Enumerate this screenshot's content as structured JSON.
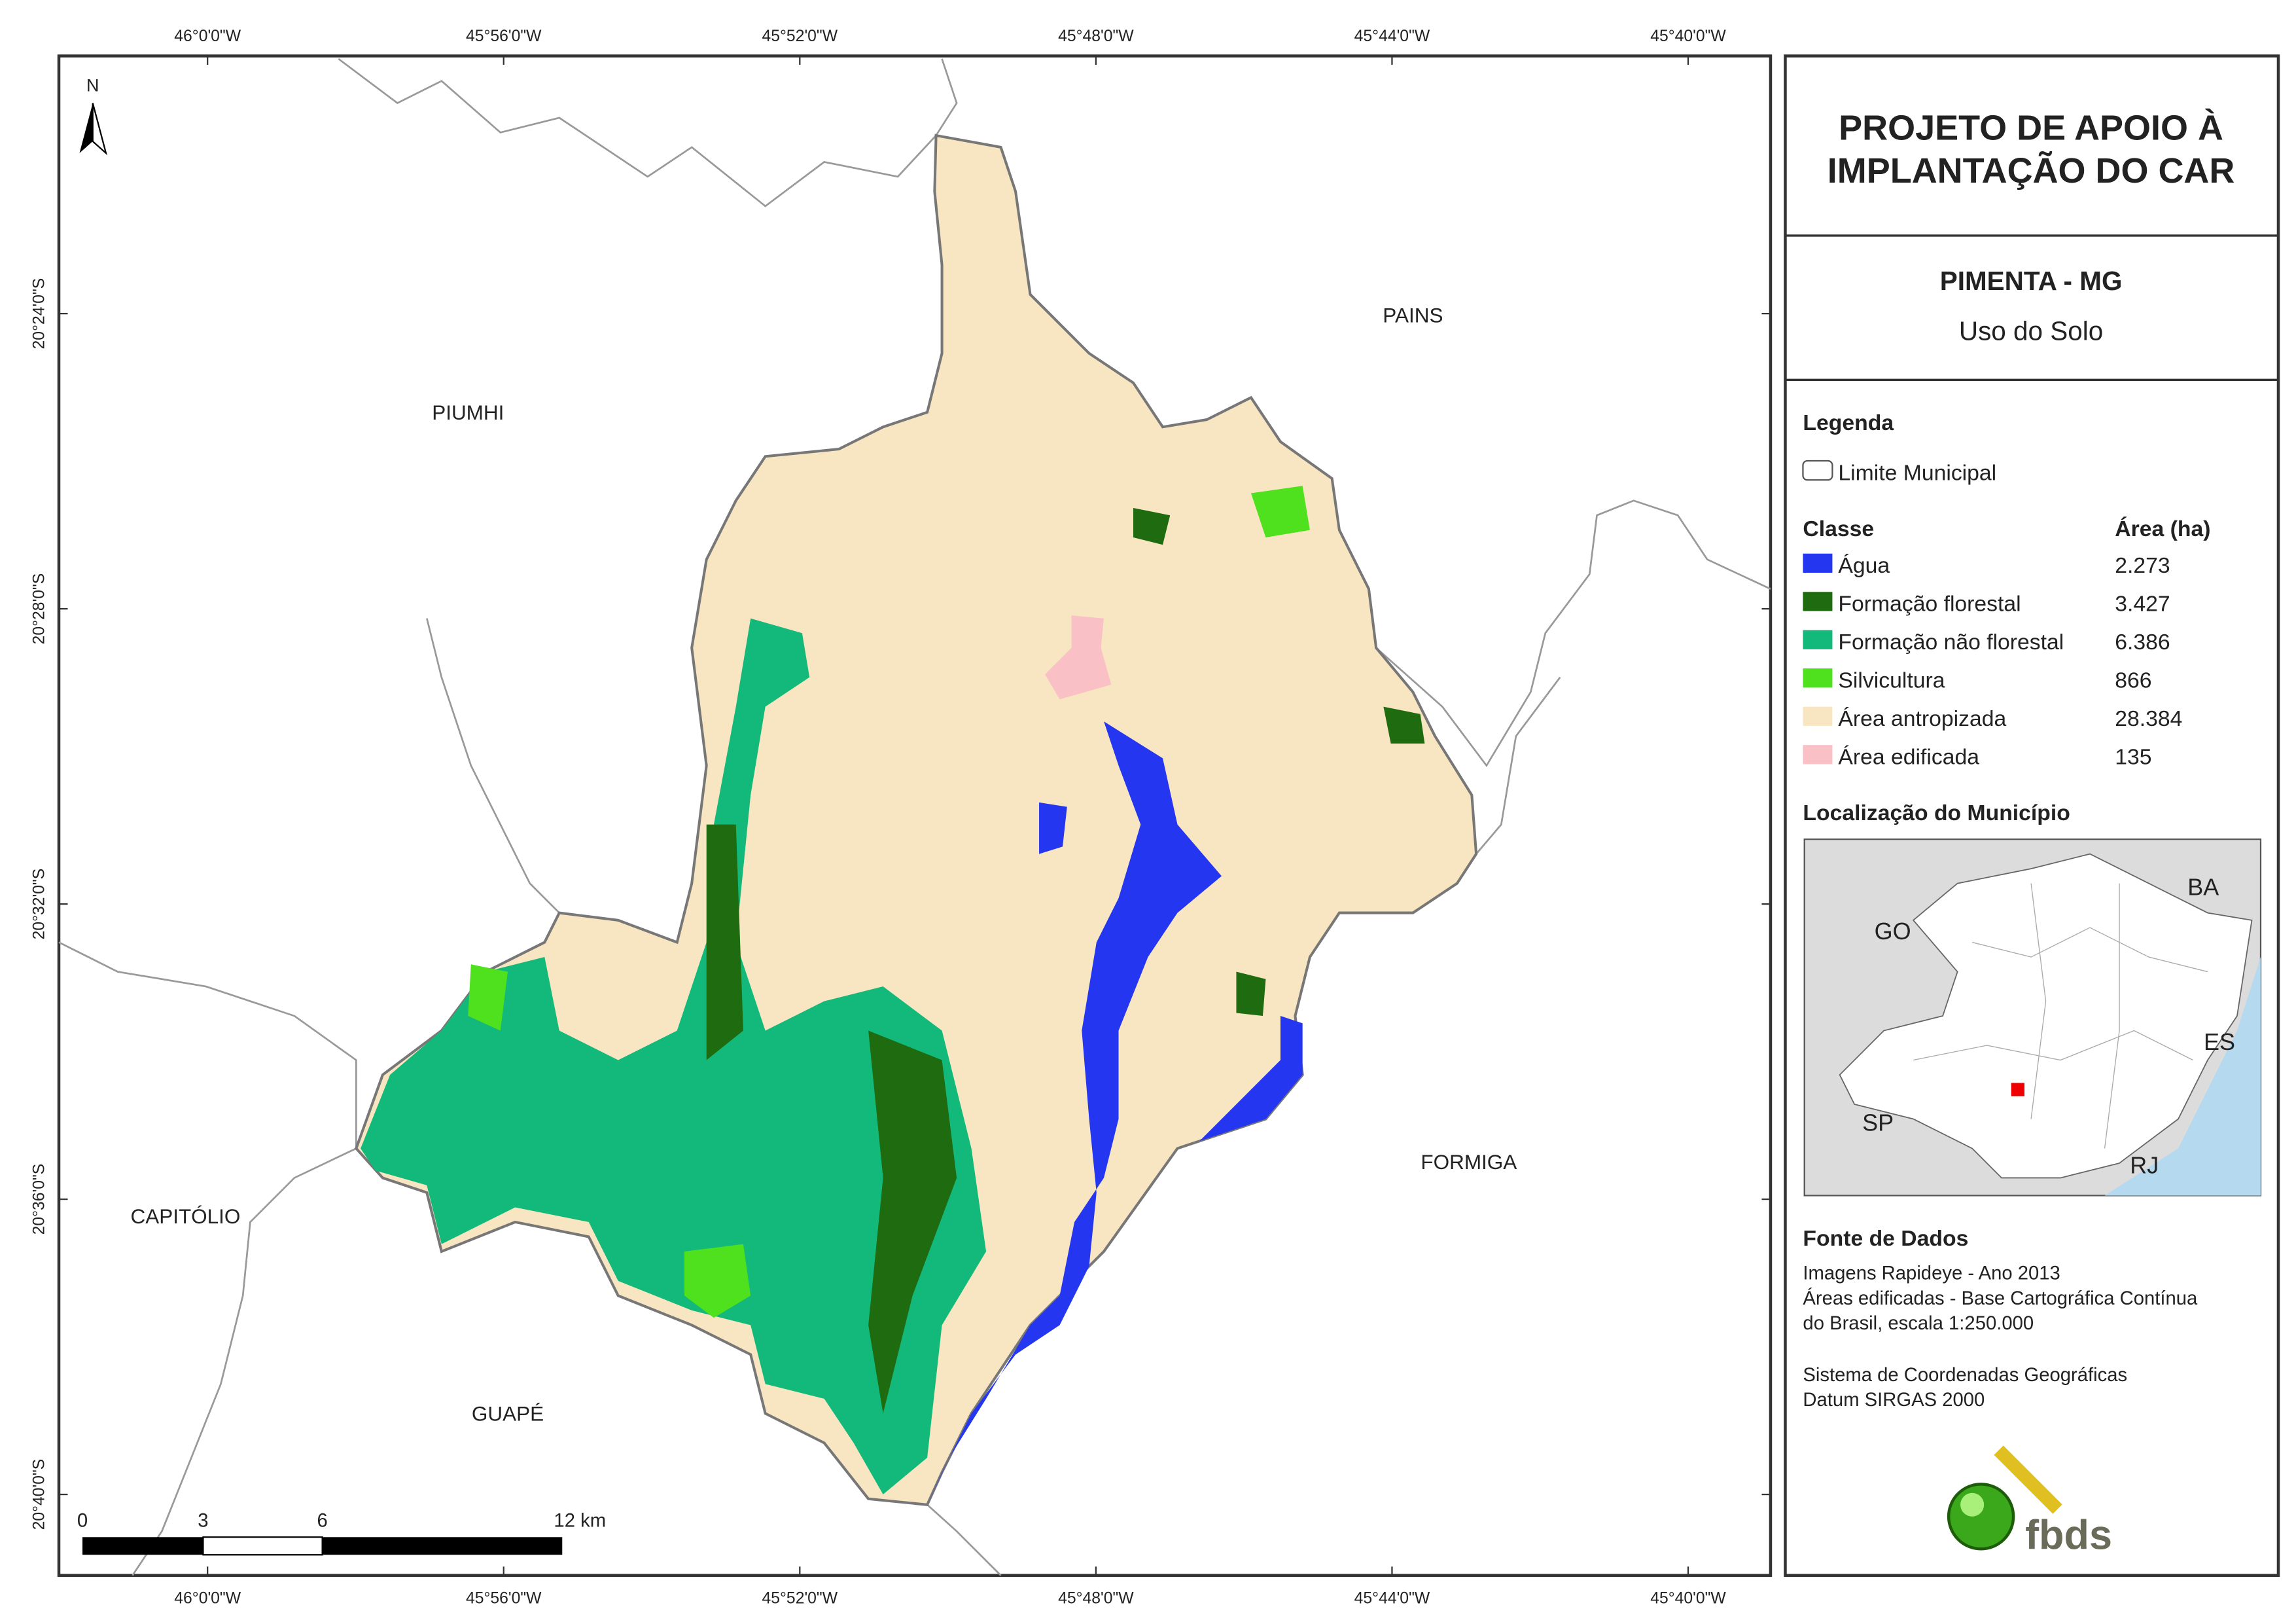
{
  "header": {
    "title_line1": "PROJETO DE APOIO À",
    "title_line2": "IMPLANTAÇÃO DO CAR",
    "municipality": "PIMENTA - MG",
    "subtitle": "Uso do Solo"
  },
  "legend": {
    "title": "Legenda",
    "boundary": "Limite Municipal",
    "class_header": "Classe",
    "area_header": "Área (ha)",
    "items": [
      {
        "label": "Água",
        "area": "2.273",
        "color": "#2536f0"
      },
      {
        "label": "Formação florestal",
        "area": "3.427",
        "color": "#1f6b10"
      },
      {
        "label": "Formação não florestal",
        "area": "6.386",
        "color": "#12b97a"
      },
      {
        "label": "Silvicultura",
        "area": "866",
        "color": "#4fe01e"
      },
      {
        "label": "Área antropizada",
        "area": "28.384",
        "color": "#f8e6c2"
      },
      {
        "label": "Área edificada",
        "area": "135",
        "color": "#f9c1c5"
      }
    ]
  },
  "location": {
    "title": "Localização do Município",
    "states": [
      "GO",
      "BA",
      "ES",
      "SP",
      "RJ"
    ]
  },
  "sources": {
    "title": "Fonte de Dados",
    "lines": [
      "Imagens Rapideye - Ano 2013",
      "Áreas edificadas - Base Cartográfica Contínua",
      "do Brasil, escala 1:250.000",
      "Sistema de Coordenadas Geográficas",
      "Datum SIRGAS 2000"
    ]
  },
  "logo": "fbds",
  "map": {
    "north": "N",
    "longitudes": [
      "46°0'0\"W",
      "45°56'0\"W",
      "45°52'0\"W",
      "45°48'0\"W",
      "45°44'0\"W",
      "45°40'0\"W"
    ],
    "latitudes": [
      "20°24'0\"S",
      "20°28'0\"S",
      "20°32'0\"S",
      "20°36'0\"S",
      "20°40'0\"S"
    ],
    "places": [
      "PIUMHI",
      "PAINS",
      "FORMIGA",
      "CAPITÓLIO",
      "GUAPÉ"
    ],
    "scale": [
      "0",
      "3",
      "6",
      "12 km"
    ]
  }
}
